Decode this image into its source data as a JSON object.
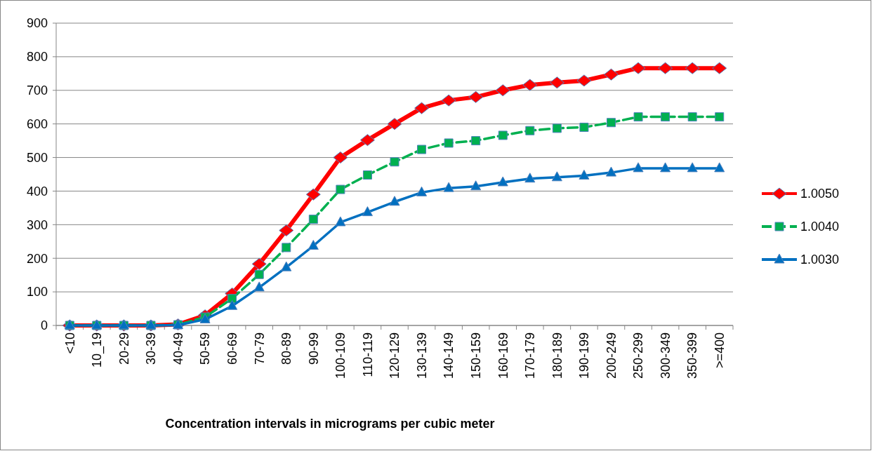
{
  "chart_data": {
    "type": "line",
    "xlabel": "Concentration intervals in micrograms per cubic meter",
    "categories": [
      "<10",
      "10_19",
      "20-29",
      "30-39",
      "40-49",
      "50-59",
      "60-69",
      "70-79",
      "80-89",
      "90-99",
      "100-109",
      "110-119",
      "120-129",
      "130-139",
      "140-149",
      "150-159",
      "160-169",
      "170-179",
      "180-189",
      "190-199",
      "200-249",
      "250-299",
      "300-349",
      "350-399",
      ">=400"
    ],
    "series": [
      {
        "name": "1.0050",
        "color": "#ff0000",
        "marker": "diamond",
        "values": [
          0,
          0,
          0,
          0,
          3,
          30,
          95,
          183,
          283,
          390,
          500,
          552,
          600,
          647,
          670,
          680,
          700,
          716,
          723,
          729,
          747,
          766,
          766,
          766,
          766
        ]
      },
      {
        "name": "1.0040",
        "color": "#00b050",
        "marker": "square",
        "line_style": "dashed",
        "values": [
          0,
          0,
          0,
          0,
          2,
          25,
          80,
          152,
          232,
          316,
          405,
          448,
          487,
          524,
          543,
          550,
          566,
          580,
          587,
          590,
          604,
          621,
          621,
          621,
          621
        ]
      },
      {
        "name": "1.0030",
        "color": "#0070c0",
        "marker": "triangle",
        "values": [
          0,
          0,
          0,
          0,
          1,
          18,
          58,
          113,
          173,
          237,
          307,
          337,
          368,
          396,
          409,
          414,
          426,
          437,
          441,
          446,
          455,
          468,
          468,
          468,
          468
        ]
      }
    ],
    "ylim": [
      0,
      900
    ],
    "yticks": [
      0,
      100,
      200,
      300,
      400,
      500,
      600,
      700,
      800,
      900
    ],
    "grid": "y",
    "legend": "right"
  }
}
